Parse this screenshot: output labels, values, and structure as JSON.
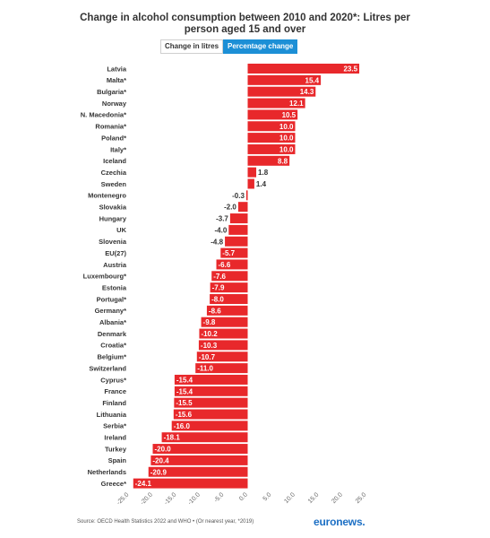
{
  "header": {
    "title_line1": "Change in alcohol consumption between 2010 and 2020*: Litres per",
    "title_line2": "person aged 15 and over",
    "tab_litres": "Change in litres",
    "tab_percentage": "Percentage change"
  },
  "footer": {
    "source": "Source: OECD Health Statistics 2022 and WHO • (Or nearest year, *2019)",
    "logo": "euronews."
  },
  "colors": {
    "bar": "#e8282b",
    "active_tab": "#1c8fd6"
  },
  "chart_data": {
    "type": "bar",
    "orientation": "horizontal",
    "categories": [
      "Latvia",
      "Malta*",
      "Bulgaria*",
      "Norway",
      "N. Macedonia*",
      "Romania*",
      "Poland*",
      "Italy*",
      "Iceland",
      "Czechia",
      "Sweden",
      "Montenegro",
      "Slovakia",
      "Hungary",
      "UK",
      "Slovenia",
      "EU(27)",
      "Austria",
      "Luxembourg*",
      "Estonia",
      "Portugal*",
      "Germany*",
      "Albania*",
      "Denmark",
      "Croatia*",
      "Belgium*",
      "Switzerland",
      "Cyprus*",
      "France",
      "Finland",
      "Lithuania",
      "Serbia*",
      "Ireland",
      "Turkey",
      "Spain",
      "Netherlands",
      "Greece*"
    ],
    "values": [
      23.5,
      15.4,
      14.3,
      12.1,
      10.5,
      10.0,
      10.0,
      10.0,
      8.8,
      1.8,
      1.4,
      -0.3,
      -2.0,
      -3.7,
      -4.0,
      -4.8,
      -5.7,
      -6.6,
      -7.6,
      -7.9,
      -8.0,
      -8.6,
      -9.8,
      -10.2,
      -10.3,
      -10.7,
      -11.0,
      -15.4,
      -15.4,
      -15.5,
      -15.6,
      -16.0,
      -18.1,
      -20.0,
      -20.4,
      -20.9,
      -24.1
    ],
    "data_labels": [
      "23.5",
      "15.4",
      "14.3",
      "12.1",
      "10.5",
      "10.0",
      "10.0",
      "10.0",
      "8.8",
      "1.8",
      "1.4",
      "-0.3",
      "-2.0",
      "-3.7",
      "-4.0",
      "-4.8",
      "-5.7",
      "-6.6",
      "-7.6",
      "-7.9",
      "-8.0",
      "-8.6",
      "-9.8",
      "-10.2",
      "-10.3",
      "-10.7",
      "-11.0",
      "-15.4",
      "-15.4",
      "-15.5",
      "-15.6",
      "-16.0",
      "-18.1",
      "-20.0",
      "-20.4",
      "-20.9",
      "-24.1"
    ],
    "xlim": [
      -25,
      25
    ],
    "xticks": [
      -25,
      -20,
      -15,
      -10,
      -5,
      0,
      5,
      10,
      15,
      20,
      25
    ],
    "xtick_labels": [
      "-25.0",
      "-20.0",
      "-15.0",
      "-10.0",
      "-5.0",
      "0.0",
      "5.0",
      "10.0",
      "15.0",
      "20.0",
      "25.0"
    ],
    "grid": false,
    "legend": "none"
  }
}
